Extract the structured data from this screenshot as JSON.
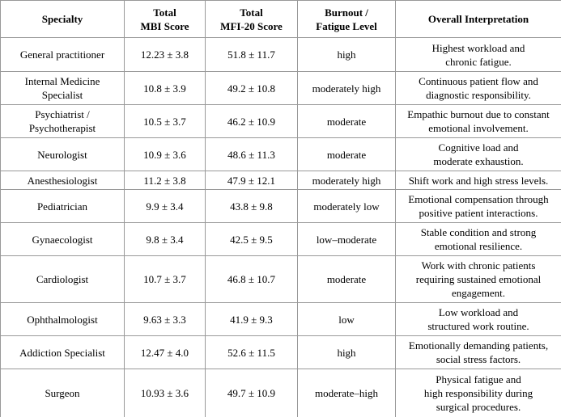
{
  "table": {
    "headers": [
      [
        "Specialty"
      ],
      [
        "Total",
        "MBI Score"
      ],
      [
        "Total",
        "MFI-20 Score"
      ],
      [
        "Burnout /",
        "Fatigue Level"
      ],
      [
        "Overall Interpretation"
      ]
    ],
    "rows": [
      [
        [
          "General practitioner"
        ],
        [
          "12.23 ± 3.8"
        ],
        [
          "51.8 ± 11.7"
        ],
        [
          "high"
        ],
        [
          "Highest workload and",
          "chronic fatigue."
        ]
      ],
      [
        [
          "Internal Medicine",
          "Specialist"
        ],
        [
          "10.8 ± 3.9"
        ],
        [
          "49.2 ± 10.8"
        ],
        [
          "moderately high"
        ],
        [
          "Continuous patient flow and",
          "diagnostic responsibility."
        ]
      ],
      [
        [
          "Psychiatrist /",
          "Psychotherapist"
        ],
        [
          "10.5 ± 3.7"
        ],
        [
          "46.2 ± 10.9"
        ],
        [
          "moderate"
        ],
        [
          "Empathic burnout due to constant",
          "emotional involvement."
        ]
      ],
      [
        [
          "Neurologist"
        ],
        [
          "10.9 ± 3.6"
        ],
        [
          "48.6 ± 11.3"
        ],
        [
          "moderate"
        ],
        [
          "Cognitive load and",
          "moderate exhaustion."
        ]
      ],
      [
        [
          "Anesthesiologist"
        ],
        [
          "11.2 ± 3.8"
        ],
        [
          "47.9 ± 12.1"
        ],
        [
          "moderately high"
        ],
        [
          "Shift work and high stress levels."
        ]
      ],
      [
        [
          "Pediatrician"
        ],
        [
          "9.9 ± 3.4"
        ],
        [
          "43.8 ± 9.8"
        ],
        [
          "moderately low"
        ],
        [
          "Emotional compensation through",
          "positive patient interactions."
        ]
      ],
      [
        [
          "Gynaecologist"
        ],
        [
          "9.8 ± 3.4"
        ],
        [
          "42.5 ± 9.5"
        ],
        [
          "low–moderate"
        ],
        [
          "Stable condition and strong",
          "emotional resilience."
        ]
      ],
      [
        [
          "Cardiologist"
        ],
        [
          "10.7 ± 3.7"
        ],
        [
          "46.8 ± 10.7"
        ],
        [
          "moderate"
        ],
        [
          "Work with chronic patients",
          "requiring sustained emotional",
          "engagement."
        ]
      ],
      [
        [
          "Ophthalmologist"
        ],
        [
          "9.63 ± 3.3"
        ],
        [
          "41.9 ± 9.3"
        ],
        [
          "low"
        ],
        [
          "Low workload and",
          "structured work routine."
        ]
      ],
      [
        [
          "Addiction Specialist"
        ],
        [
          "12.47 ± 4.0"
        ],
        [
          "52.6 ± 11.5"
        ],
        [
          "high"
        ],
        [
          "Emotionally demanding patients,",
          "social stress factors."
        ]
      ],
      [
        [
          "Surgeon"
        ],
        [
          "10.93 ± 3.6"
        ],
        [
          "49.7 ± 10.9"
        ],
        [
          "moderate–high"
        ],
        [
          "Physical fatigue and",
          "high responsibility during",
          "surgical procedures."
        ]
      ]
    ]
  }
}
